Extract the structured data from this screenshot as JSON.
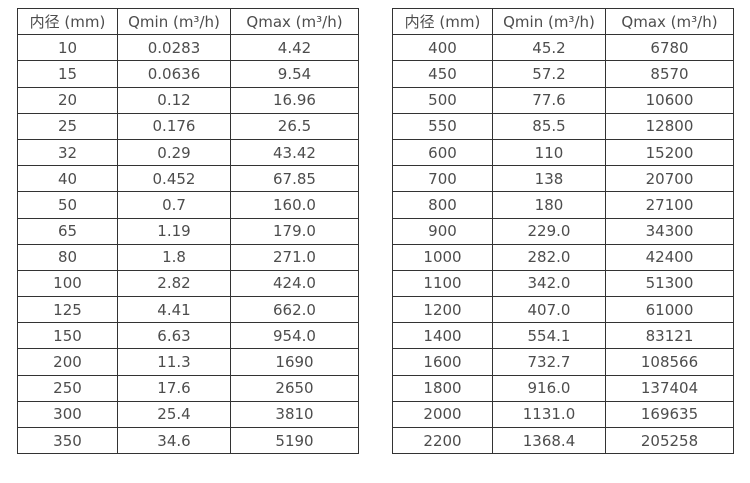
{
  "colors": {
    "background": "#ffffff",
    "table_border": "#333333",
    "table_text": "#4d4d4d"
  },
  "chart_data": [
    {
      "type": "table",
      "title": "",
      "columns": [
        "内径 (mm)",
        "Qmin (m³/h)",
        "Qmax (m³/h)"
      ],
      "rows": [
        [
          "10",
          "0.0283",
          "4.42"
        ],
        [
          "15",
          "0.0636",
          "9.54"
        ],
        [
          "20",
          "0.12",
          "16.96"
        ],
        [
          "25",
          "0.176",
          "26.5"
        ],
        [
          "32",
          "0.29",
          "43.42"
        ],
        [
          "40",
          "0.452",
          "67.85"
        ],
        [
          "50",
          "0.7",
          "160.0"
        ],
        [
          "65",
          "1.19",
          "179.0"
        ],
        [
          "80",
          "1.8",
          "271.0"
        ],
        [
          "100",
          "2.82",
          "424.0"
        ],
        [
          "125",
          "4.41",
          "662.0"
        ],
        [
          "150",
          "6.63",
          "954.0"
        ],
        [
          "200",
          "11.3",
          "1690"
        ],
        [
          "250",
          "17.6",
          "2650"
        ],
        [
          "300",
          "25.4",
          "3810"
        ],
        [
          "350",
          "34.6",
          "5190"
        ]
      ]
    },
    {
      "type": "table",
      "title": "",
      "columns": [
        "内径 (mm)",
        "Qmin (m³/h)",
        "Qmax (m³/h)"
      ],
      "rows": [
        [
          "400",
          "45.2",
          "6780"
        ],
        [
          "450",
          "57.2",
          "8570"
        ],
        [
          "500",
          "77.6",
          "10600"
        ],
        [
          "550",
          "85.5",
          "12800"
        ],
        [
          "600",
          "110",
          "15200"
        ],
        [
          "700",
          "138",
          "20700"
        ],
        [
          "800",
          "180",
          "27100"
        ],
        [
          "900",
          "229.0",
          "34300"
        ],
        [
          "1000",
          "282.0",
          "42400"
        ],
        [
          "1100",
          "342.0",
          "51300"
        ],
        [
          "1200",
          "407.0",
          "61000"
        ],
        [
          "1400",
          "554.1",
          "83121"
        ],
        [
          "1600",
          "732.7",
          "108566"
        ],
        [
          "1800",
          "916.0",
          "137404"
        ],
        [
          "2000",
          "1131.0",
          "169635"
        ],
        [
          "2200",
          "1368.4",
          "205258"
        ]
      ]
    }
  ]
}
